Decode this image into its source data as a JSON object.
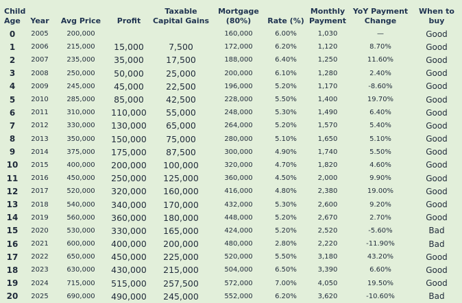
{
  "table": {
    "header": [
      [
        "Child",
        "Age"
      ],
      [
        "Year"
      ],
      [
        "Avg Price"
      ],
      [
        "Profit"
      ],
      [
        "Taxable",
        "Capital Gains"
      ],
      [
        "Mortgage",
        "(80%)"
      ],
      [
        "Rate (%)"
      ],
      [
        "Monthly",
        "Payment"
      ],
      [
        "YoY Payment",
        "Change"
      ],
      [
        "When to",
        "buy"
      ]
    ],
    "rows": [
      [
        "0",
        "2005",
        "200,000",
        null,
        null,
        "160,000",
        "6.00%",
        "1,030",
        "—",
        "Good"
      ],
      [
        "1",
        "2006",
        "215,000",
        "15,000",
        "7,500",
        "172,000",
        "6.20%",
        "1,120",
        "8.70%",
        "Good"
      ],
      [
        "2",
        "2007",
        "235,000",
        "35,000",
        "17,500",
        "188,000",
        "6.40%",
        "1,250",
        "11.60%",
        "Good"
      ],
      [
        "3",
        "2008",
        "250,000",
        "50,000",
        "25,000",
        "200,000",
        "6.10%",
        "1,280",
        "2.40%",
        "Good"
      ],
      [
        "4",
        "2009",
        "245,000",
        "45,000",
        "22,500",
        "196,000",
        "5.20%",
        "1,170",
        "-8.60%",
        "Good"
      ],
      [
        "5",
        "2010",
        "285,000",
        "85,000",
        "42,500",
        "228,000",
        "5.50%",
        "1,400",
        "19.70%",
        "Good"
      ],
      [
        "6",
        "2011",
        "310,000",
        "110,000",
        "55,000",
        "248,000",
        "5.30%",
        "1,490",
        "6.40%",
        "Good"
      ],
      [
        "7",
        "2012",
        "330,000",
        "130,000",
        "65,000",
        "264,000",
        "5.20%",
        "1,570",
        "5.40%",
        "Good"
      ],
      [
        "8",
        "2013",
        "350,000",
        "150,000",
        "75,000",
        "280,000",
        "5.10%",
        "1,650",
        "5.10%",
        "Good"
      ],
      [
        "9",
        "2014",
        "375,000",
        "175,000",
        "87,500",
        "300,000",
        "4.90%",
        "1,740",
        "5.50%",
        "Good"
      ],
      [
        "10",
        "2015",
        "400,000",
        "200,000",
        "100,000",
        "320,000",
        "4.70%",
        "1,820",
        "4.60%",
        "Good"
      ],
      [
        "11",
        "2016",
        "450,000",
        "250,000",
        "125,000",
        "360,000",
        "4.50%",
        "2,000",
        "9.90%",
        "Good"
      ],
      [
        "12",
        "2017",
        "520,000",
        "320,000",
        "160,000",
        "416,000",
        "4.80%",
        "2,380",
        "19.00%",
        "Good"
      ],
      [
        "13",
        "2018",
        "540,000",
        "340,000",
        "170,000",
        "432,000",
        "5.30%",
        "2,600",
        "9.20%",
        "Good"
      ],
      [
        "14",
        "2019",
        "560,000",
        "360,000",
        "180,000",
        "448,000",
        "5.20%",
        "2,670",
        "2.70%",
        "Good"
      ],
      [
        "15",
        "2020",
        "530,000",
        "330,000",
        "165,000",
        "424,000",
        "5.20%",
        "2,520",
        "-5.60%",
        "Bad"
      ],
      [
        "16",
        "2021",
        "600,000",
        "400,000",
        "200,000",
        "480,000",
        "2.80%",
        "2,220",
        "-11.90%",
        "Bad"
      ],
      [
        "17",
        "2022",
        "650,000",
        "450,000",
        "225,000",
        "520,000",
        "5.50%",
        "3,180",
        "43.20%",
        "Good"
      ],
      [
        "18",
        "2023",
        "630,000",
        "430,000",
        "215,000",
        "504,000",
        "6.50%",
        "3,390",
        "6.60%",
        "Good"
      ],
      [
        "19",
        "2024",
        "715,000",
        "515,000",
        "257,500",
        "572,000",
        "7.00%",
        "4,050",
        "19.50%",
        "Good"
      ],
      [
        "20",
        "2025",
        "690,000",
        "490,000",
        "245,000",
        "552,000",
        "6.20%",
        "3,620",
        "-10.60%",
        "Bad"
      ]
    ]
  }
}
